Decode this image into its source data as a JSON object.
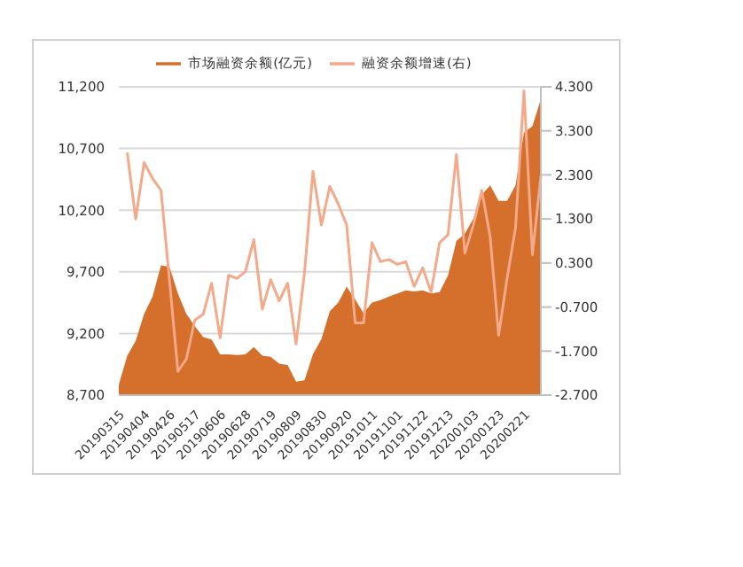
{
  "chart_data": {
    "type": "area",
    "categories": [
      "20190315",
      null,
      null,
      "20190404",
      null,
      null,
      "20190426",
      null,
      null,
      "20190517",
      null,
      null,
      "20190606",
      null,
      null,
      "20190628",
      null,
      null,
      "20190719",
      null,
      null,
      "20190809",
      null,
      null,
      "20190830",
      null,
      null,
      "20190920",
      null,
      null,
      "20191011",
      null,
      null,
      "20191101",
      null,
      null,
      "20191122",
      null,
      null,
      "20191213",
      null,
      null,
      "20200103",
      null,
      null,
      "20200123",
      null,
      null,
      "20200221",
      null,
      null
    ],
    "series": [
      {
        "name": "市场融资余额(亿元)",
        "color": "#d4702c",
        "values": [
          8787,
          9020,
          9140,
          9360,
          9500,
          9752,
          9740,
          9525,
          9360,
          9260,
          9170,
          9150,
          9030,
          9030,
          9025,
          9030,
          9090,
          9020,
          9010,
          8955,
          8945,
          8810,
          8820,
          9033,
          9155,
          9380,
          9450,
          9580,
          9475,
          9365,
          9450,
          9470,
          9500,
          9525,
          9550,
          9540,
          9550,
          9525,
          9535,
          9670,
          9950,
          10010,
          10130,
          10325,
          10400,
          10275,
          10275,
          10400,
          10830,
          10880,
          11100
        ]
      },
      {
        "name": "融资余额增速(右)",
        "type": "line",
        "axis": "y2",
        "color": "#f4a98a",
        "values": [
          null,
          2.81,
          1.3,
          2.58,
          2.22,
          1.95,
          -0.09,
          -2.16,
          -1.88,
          -1.0,
          -0.86,
          -0.16,
          -1.4,
          0.02,
          -0.05,
          0.11,
          0.83,
          -0.75,
          -0.08,
          -0.56,
          -0.16,
          -1.54,
          0.08,
          2.38,
          1.16,
          2.04,
          1.64,
          1.16,
          -1.06,
          -1.06,
          0.76,
          0.33,
          0.38,
          0.27,
          0.33,
          -0.23,
          0.19,
          -0.36,
          0.76,
          0.94,
          2.76,
          0.52,
          1.16,
          1.95,
          0.89,
          -1.34,
          -0.05,
          1.1,
          4.21,
          0.49,
          2.27
        ]
      }
    ],
    "ylim": [
      8700,
      11200
    ],
    "yticks": [
      {
        "value": 8700,
        "label": "8,700"
      },
      {
        "value": 9200,
        "label": "9,200"
      },
      {
        "value": 9700,
        "label": "9,700"
      },
      {
        "value": 10200,
        "label": "10,200"
      },
      {
        "value": 10700,
        "label": "10,700"
      },
      {
        "value": 11200,
        "label": "11,200"
      }
    ],
    "y2lim": [
      -2.7,
      4.3
    ],
    "y2ticks": [
      {
        "value": -2.7,
        "label": "-2.700"
      },
      {
        "value": -1.7,
        "label": "-1.700"
      },
      {
        "value": -0.7,
        "label": "-0.700"
      },
      {
        "value": 0.3,
        "label": "0.300"
      },
      {
        "value": 1.3,
        "label": "1.300"
      },
      {
        "value": 2.3,
        "label": "2.300"
      },
      {
        "value": 3.3,
        "label": "3.300"
      },
      {
        "value": 4.3,
        "label": "4.300"
      }
    ],
    "grid": "y",
    "legend": "top",
    "marker": "none"
  }
}
